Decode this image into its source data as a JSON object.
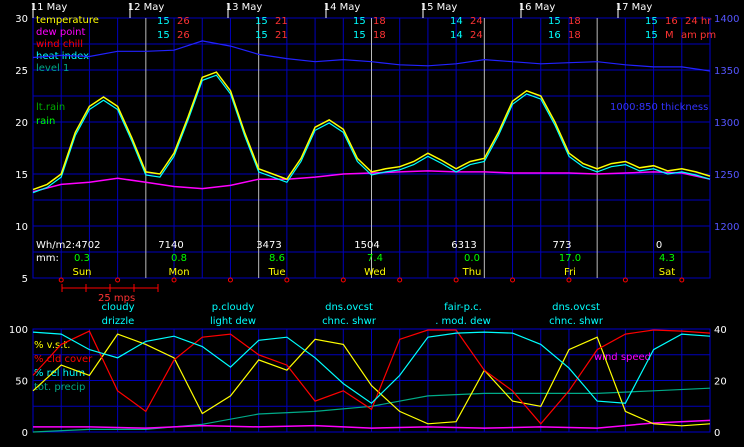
{
  "chart_data": [
    {
      "type": "line",
      "days": [
        "11 May",
        "12 May",
        "13 May",
        "14 May",
        "15 May",
        "16 May",
        "17 May"
      ],
      "weekdays": [
        "Sun",
        "Mon",
        "Tue",
        "Wed",
        "Thu",
        "Fri",
        "Sat"
      ],
      "daily_temps": [
        {
          "row1": [
            "",
            "",
            ""
          ],
          "row2": [
            "",
            "",
            ""
          ]
        },
        {
          "row1": [
            "15",
            "26",
            ""
          ],
          "row2": [
            "15",
            "26",
            ""
          ]
        },
        {
          "row1": [
            "15",
            "21",
            ""
          ],
          "row2": [
            "15",
            "21",
            ""
          ]
        },
        {
          "row1": [
            "15",
            "18",
            ""
          ],
          "row2": [
            "15",
            "18",
            ""
          ]
        },
        {
          "row1": [
            "14",
            "24",
            ""
          ],
          "row2": [
            "14",
            "24",
            ""
          ]
        },
        {
          "row1": [
            "15",
            "18",
            ""
          ],
          "row2": [
            "16",
            "18",
            ""
          ]
        },
        {
          "row1": [
            "15",
            "16",
            "24 hr"
          ],
          "row2": [
            "15",
            "M",
            "am pm"
          ]
        }
      ],
      "legend": [
        "temperature",
        "dew point",
        "wind chill",
        "heat index",
        "level 1"
      ],
      "legend_colors": [
        "#ffff00",
        "#ff00ff",
        "#ff0000",
        "#00ffff",
        "#00aa88"
      ],
      "rain_labels": [
        "lt.rain",
        "rain"
      ],
      "thickness_label": "1000:850 thickness",
      "left_axis": {
        "ylim": [
          5,
          30
        ],
        "ticks": [
          5,
          10,
          15,
          20,
          25,
          30
        ]
      },
      "right_axis": {
        "ylim": [
          1150,
          1400
        ],
        "ticks": [
          1200,
          1250,
          1300,
          1350,
          1400
        ]
      },
      "wh_label": "Wh/m2:4702",
      "wh_values": [
        "",
        "7140",
        "3473",
        "1504",
        "6313",
        "773",
        "0"
      ],
      "mm_label": "mm:",
      "mm_values": [
        "0.3",
        "0.8",
        "8.6",
        "7.4",
        "0.0",
        "17.0",
        "4.3"
      ],
      "wind_scale_label": "25 mps",
      "temperature": [
        [
          0,
          13.5
        ],
        [
          3,
          14
        ],
        [
          6,
          15
        ],
        [
          9,
          19
        ],
        [
          12,
          21.5
        ],
        [
          15,
          22.4
        ],
        [
          18,
          21.5
        ],
        [
          21,
          18.5
        ],
        [
          24,
          15.2
        ],
        [
          27,
          15
        ],
        [
          30,
          17
        ],
        [
          33,
          20.5
        ],
        [
          36,
          24.3
        ],
        [
          39,
          24.8
        ],
        [
          42,
          23
        ],
        [
          45,
          19
        ],
        [
          48,
          15.5
        ],
        [
          51,
          15
        ],
        [
          54,
          14.5
        ],
        [
          57,
          16.5
        ],
        [
          60,
          19.5
        ],
        [
          63,
          20.2
        ],
        [
          66,
          19.3
        ],
        [
          69,
          16.5
        ],
        [
          72,
          15.2
        ],
        [
          75,
          15.5
        ],
        [
          78,
          15.7
        ],
        [
          81,
          16.2
        ],
        [
          84,
          17
        ],
        [
          87,
          16.3
        ],
        [
          90,
          15.5
        ],
        [
          93,
          16.2
        ],
        [
          96,
          16.5
        ],
        [
          99,
          19
        ],
        [
          102,
          22
        ],
        [
          105,
          23
        ],
        [
          108,
          22.5
        ],
        [
          111,
          20
        ],
        [
          114,
          17
        ],
        [
          117,
          16
        ],
        [
          120,
          15.5
        ],
        [
          123,
          16
        ],
        [
          126,
          16.2
        ],
        [
          129,
          15.6
        ],
        [
          132,
          15.8
        ],
        [
          135,
          15.3
        ],
        [
          138,
          15.5
        ],
        [
          141,
          15.2
        ],
        [
          144,
          14.8
        ]
      ],
      "dew_point": [
        [
          0,
          13.3
        ],
        [
          6,
          14
        ],
        [
          12,
          14.2
        ],
        [
          18,
          14.6
        ],
        [
          24,
          14.2
        ],
        [
          30,
          13.8
        ],
        [
          36,
          13.6
        ],
        [
          42,
          13.9
        ],
        [
          48,
          14.5
        ],
        [
          54,
          14.5
        ],
        [
          60,
          14.7
        ],
        [
          66,
          15
        ],
        [
          72,
          15.1
        ],
        [
          78,
          15.2
        ],
        [
          84,
          15.3
        ],
        [
          90,
          15.2
        ],
        [
          96,
          15.2
        ],
        [
          102,
          15.1
        ],
        [
          108,
          15.1
        ],
        [
          114,
          15.1
        ],
        [
          120,
          15
        ],
        [
          126,
          15.1
        ],
        [
          132,
          15.2
        ],
        [
          138,
          15.1
        ],
        [
          144,
          14.5
        ]
      ],
      "thickness": [
        [
          0,
          1362
        ],
        [
          6,
          1364
        ],
        [
          12,
          1363
        ],
        [
          18,
          1368
        ],
        [
          24,
          1368
        ],
        [
          30,
          1369
        ],
        [
          36,
          1378
        ],
        [
          42,
          1373
        ],
        [
          48,
          1365
        ],
        [
          54,
          1361
        ],
        [
          60,
          1358
        ],
        [
          66,
          1360
        ],
        [
          72,
          1358
        ],
        [
          78,
          1355
        ],
        [
          84,
          1354
        ],
        [
          90,
          1356
        ],
        [
          96,
          1360
        ],
        [
          102,
          1358
        ],
        [
          108,
          1356
        ],
        [
          114,
          1357
        ],
        [
          120,
          1358
        ],
        [
          126,
          1355
        ],
        [
          132,
          1353
        ],
        [
          138,
          1353
        ],
        [
          144,
          1349
        ]
      ]
    },
    {
      "type": "line",
      "weather_labels": [
        {
          "top": "cloudy",
          "bottom": "drizzle"
        },
        {
          "top": "p.cloudy",
          "bottom": "light dew"
        },
        {
          "top": "dns.ovcst",
          "bottom": "chnc. shwr"
        },
        {
          "top": "fair-p.c.",
          "bottom": ". mod. dew"
        },
        {
          "top": "dns.ovcst",
          "bottom": "chnc. shwr"
        }
      ],
      "legend": [
        "% v.s.t.",
        "% cld cover",
        "% rel hum",
        "tot. precip"
      ],
      "legend_colors": [
        "#ffff00",
        "#ff0000",
        "#00ffff",
        "#00aa88"
      ],
      "wind_speed_label": "wind speed",
      "left_axis": {
        "ylim": [
          0,
          100
        ],
        "ticks": [
          0,
          50,
          100
        ]
      },
      "right_axis": {
        "ylim": [
          0,
          40
        ],
        "ticks": [
          0,
          20,
          40
        ]
      },
      "rel_hum": [
        [
          0,
          97
        ],
        [
          6,
          95
        ],
        [
          12,
          80
        ],
        [
          18,
          72
        ],
        [
          24,
          88
        ],
        [
          30,
          93
        ],
        [
          36,
          83
        ],
        [
          42,
          63
        ],
        [
          48,
          89
        ],
        [
          54,
          92
        ],
        [
          60,
          72
        ],
        [
          66,
          47
        ],
        [
          72,
          28
        ],
        [
          78,
          55
        ],
        [
          84,
          92
        ],
        [
          90,
          96
        ],
        [
          96,
          97
        ],
        [
          102,
          96
        ],
        [
          108,
          85
        ],
        [
          114,
          62
        ],
        [
          120,
          30
        ],
        [
          126,
          28
        ],
        [
          132,
          80
        ],
        [
          138,
          95
        ],
        [
          144,
          93
        ]
      ],
      "cloud_cover": [
        [
          0,
          55
        ],
        [
          6,
          85
        ],
        [
          12,
          98
        ],
        [
          18,
          40
        ],
        [
          24,
          20
        ],
        [
          30,
          70
        ],
        [
          36,
          92
        ],
        [
          42,
          95
        ],
        [
          48,
          75
        ],
        [
          54,
          65
        ],
        [
          60,
          30
        ],
        [
          66,
          40
        ],
        [
          72,
          22
        ],
        [
          78,
          90
        ],
        [
          84,
          99
        ],
        [
          90,
          99
        ],
        [
          96,
          60
        ],
        [
          102,
          40
        ],
        [
          108,
          8
        ],
        [
          114,
          40
        ],
        [
          120,
          80
        ],
        [
          126,
          95
        ],
        [
          132,
          99
        ],
        [
          138,
          98
        ],
        [
          144,
          96
        ]
      ],
      "vst": [
        [
          0,
          40
        ],
        [
          6,
          65
        ],
        [
          12,
          55
        ],
        [
          18,
          95
        ],
        [
          24,
          85
        ],
        [
          30,
          72
        ],
        [
          36,
          18
        ],
        [
          42,
          35
        ],
        [
          48,
          70
        ],
        [
          54,
          60
        ],
        [
          60,
          90
        ],
        [
          66,
          85
        ],
        [
          72,
          45
        ],
        [
          78,
          20
        ],
        [
          84,
          8
        ],
        [
          90,
          10
        ],
        [
          96,
          60
        ],
        [
          102,
          30
        ],
        [
          108,
          25
        ],
        [
          114,
          80
        ],
        [
          120,
          92
        ],
        [
          126,
          20
        ],
        [
          132,
          8
        ],
        [
          138,
          6
        ],
        [
          144,
          8
        ]
      ],
      "precip": [
        [
          0,
          0
        ],
        [
          12,
          1
        ],
        [
          24,
          1
        ],
        [
          36,
          3
        ],
        [
          48,
          7
        ],
        [
          60,
          8
        ],
        [
          72,
          10
        ],
        [
          84,
          14
        ],
        [
          96,
          15
        ],
        [
          108,
          15
        ],
        [
          120,
          15
        ],
        [
          132,
          16
        ],
        [
          144,
          17
        ]
      ],
      "wind": [
        [
          0,
          2
        ],
        [
          12,
          2
        ],
        [
          24,
          1.5
        ],
        [
          36,
          2.5
        ],
        [
          48,
          2
        ],
        [
          60,
          2.5
        ],
        [
          72,
          1.5
        ],
        [
          84,
          2
        ],
        [
          96,
          1.5
        ],
        [
          108,
          2
        ],
        [
          120,
          1.5
        ],
        [
          132,
          3.5
        ],
        [
          144,
          4.5
        ]
      ]
    }
  ]
}
